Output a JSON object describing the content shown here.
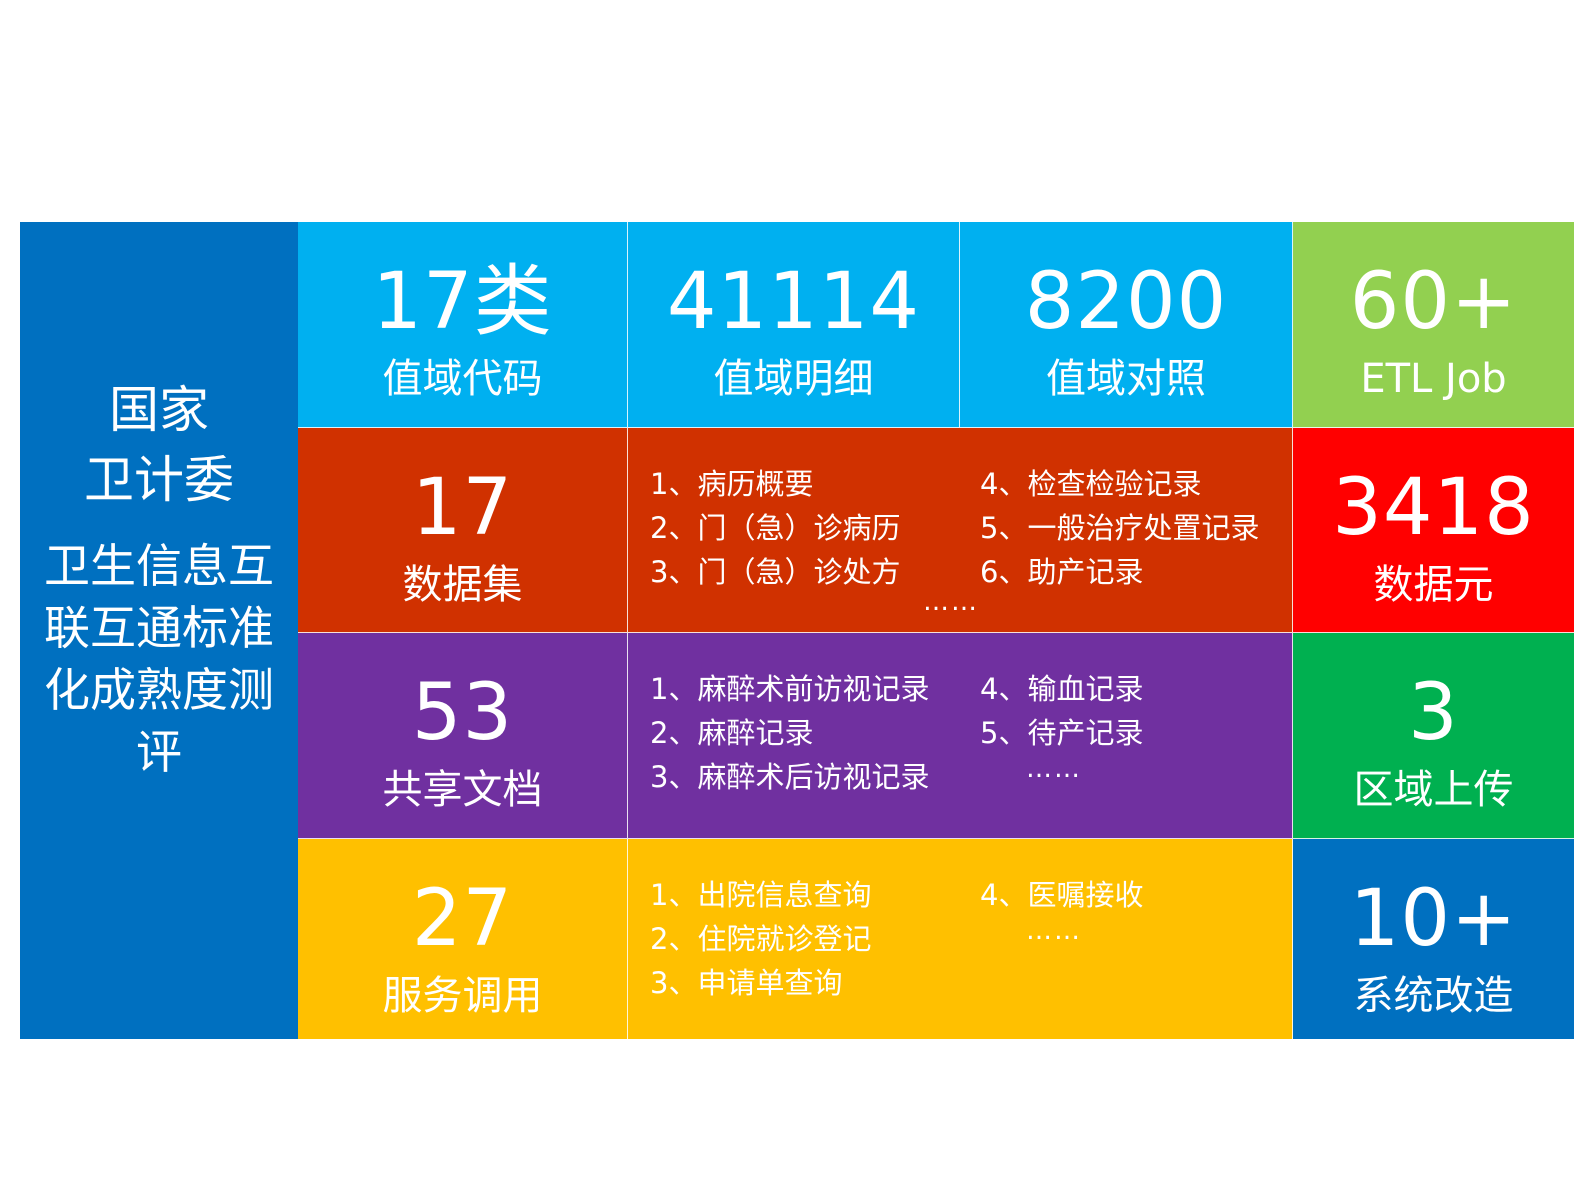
{
  "colors": {
    "sidebar": "#0070C0",
    "cyan": "#00B0F0",
    "green_light": "#92D050",
    "orange_red": "#D03100",
    "red": "#FF0000",
    "purple": "#7030A0",
    "green": "#00B050",
    "yellow": "#FFC000",
    "blue": "#0070C0"
  },
  "sidebar": {
    "title_line1": "国家",
    "title_line2": "卫计委",
    "subtitle": "卫生信息互联互通标准化成熟度测评"
  },
  "row1": {
    "codes": {
      "value": "17类",
      "label": "值域代码"
    },
    "details": {
      "value": "41114",
      "label": "值域明细"
    },
    "mapping": {
      "value": "8200",
      "label": "值域对照"
    },
    "etl": {
      "value": "60+",
      "label": "ETL Job"
    }
  },
  "row2": {
    "stat": {
      "value": "17",
      "label": "数据集"
    },
    "items_left": [
      "1、病历概要",
      "2、门（急）诊病历",
      "3、门（急）诊处方"
    ],
    "items_right": [
      "4、检查检验记录",
      "5、一般治疗处置记录",
      "6、助产记录"
    ],
    "ellipsis": "……",
    "side": {
      "value": "3418",
      "label": "数据元"
    }
  },
  "row3": {
    "stat": {
      "value": "53",
      "label": "共享文档"
    },
    "items_left": [
      "1、麻醉术前访视记录",
      "2、麻醉记录",
      "3、麻醉术后访视记录"
    ],
    "items_right": [
      "4、输血记录",
      "5、待产记录"
    ],
    "ellipsis": "……",
    "side": {
      "value": "3",
      "label": "区域上传"
    }
  },
  "row4": {
    "stat": {
      "value": "27",
      "label": "服务调用"
    },
    "items_left": [
      "1、出院信息查询",
      "2、住院就诊登记",
      "3、申请单查询"
    ],
    "items_right": [
      "4、医嘱接收"
    ],
    "ellipsis": "……",
    "side": {
      "value": "10+",
      "label": "系统改造"
    }
  }
}
